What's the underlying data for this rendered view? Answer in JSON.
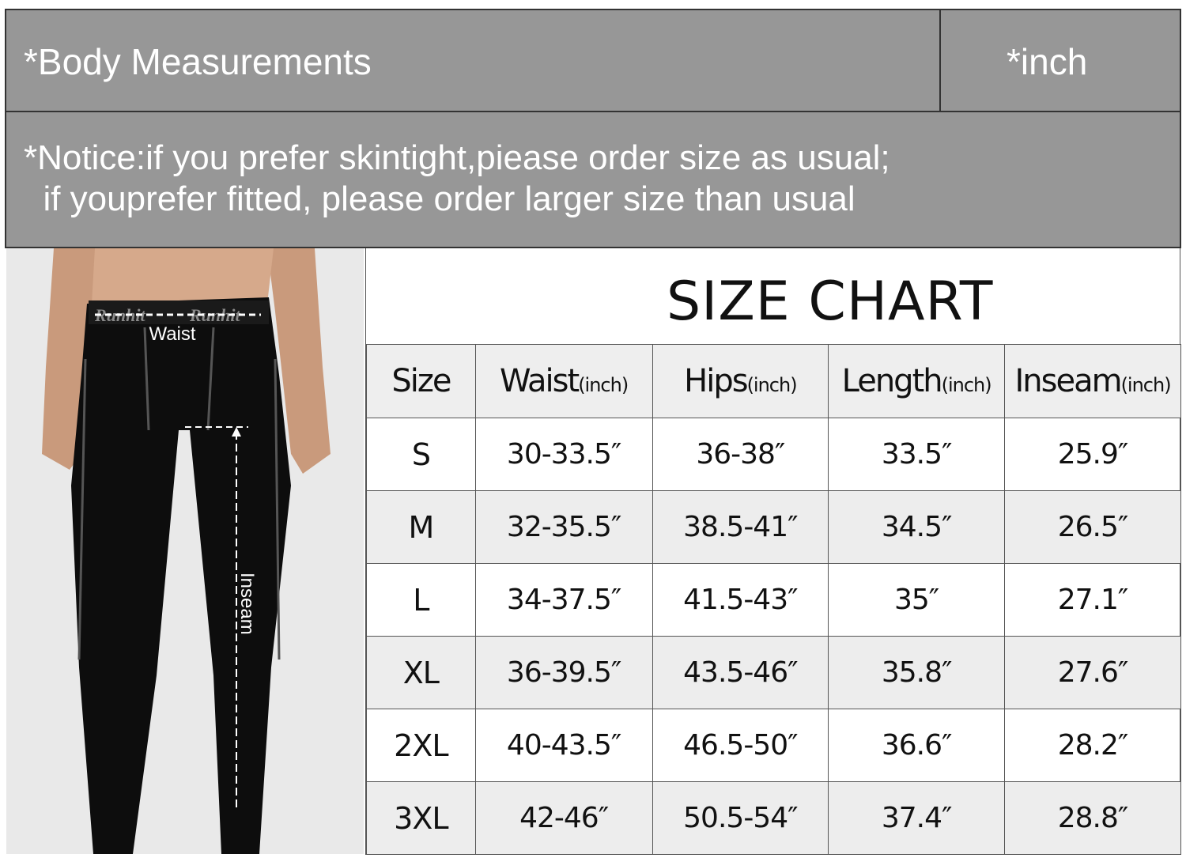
{
  "header": {
    "title": "*Body Measurements",
    "unit": "*inch"
  },
  "notice": {
    "line1": "*Notice:if you prefer skintight,piease order size as usual;",
    "line2": "  if youprefer fitted, please order larger size than usual"
  },
  "photo": {
    "waist_label": "Waist",
    "inseam_label": "Inseam",
    "brand_text": "Runhit"
  },
  "chart": {
    "title": "SIZE CHART",
    "columns": [
      {
        "label": "Size",
        "unit": ""
      },
      {
        "label": "Waist",
        "unit": "(inch)"
      },
      {
        "label": "Hips",
        "unit": "(inch)"
      },
      {
        "label": "Length",
        "unit": "(inch)"
      },
      {
        "label": "Inseam",
        "unit": "(inch)"
      }
    ],
    "rows": [
      [
        "S",
        "30-33.5″",
        "36-38″",
        "33.5″",
        "25.9″"
      ],
      [
        "M",
        "32-35.5″",
        "38.5-41″",
        "34.5″",
        "26.5″"
      ],
      [
        "L",
        "34-37.5″",
        "41.5-43″",
        "35″",
        "27.1″"
      ],
      [
        "XL",
        "36-39.5″",
        "43.5-46″",
        "35.8″",
        "27.6″"
      ],
      [
        "2XL",
        "40-43.5″",
        "46.5-50″",
        "36.6″",
        "28.2″"
      ],
      [
        "3XL",
        "42-46″",
        "50.5-54″",
        "37.4″",
        "28.8″"
      ]
    ]
  }
}
